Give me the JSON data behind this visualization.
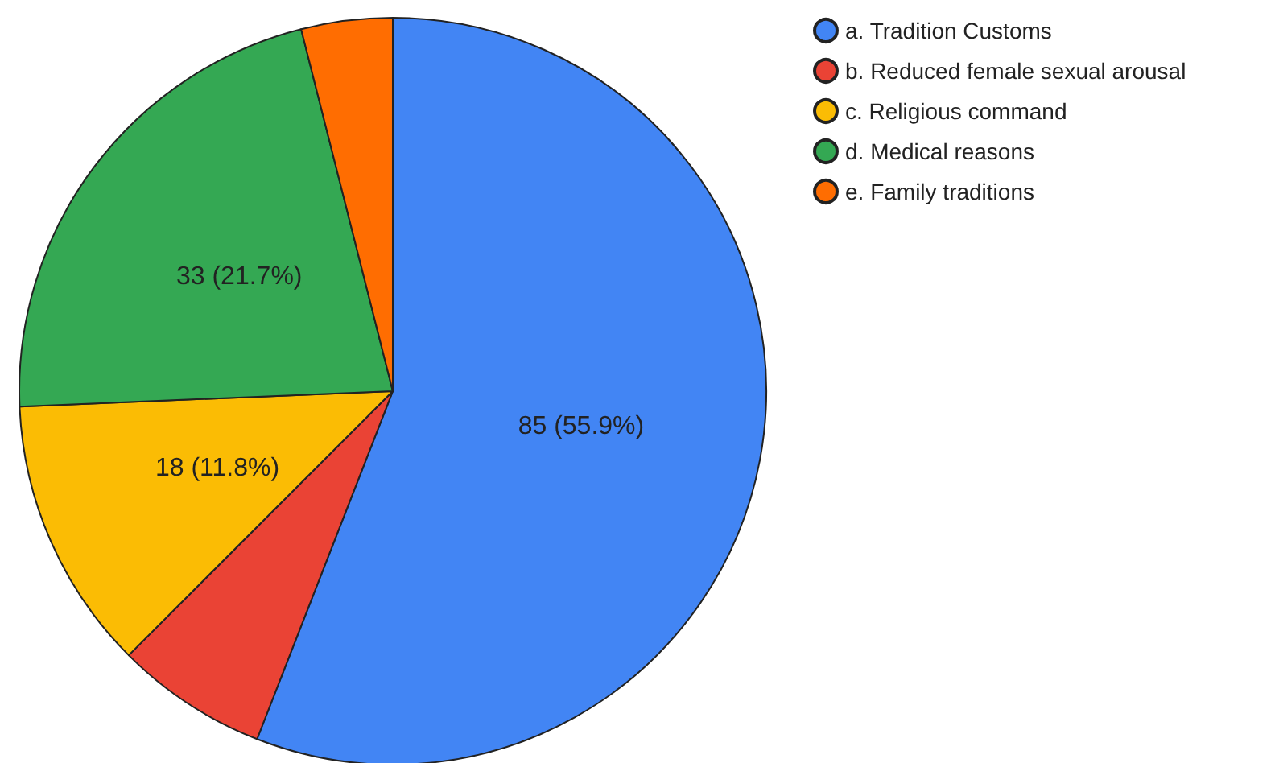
{
  "chart_data": {
    "type": "pie",
    "categories": [
      "a. Tradition Customs",
      "b. Reduced female sexual arousal",
      "c. Religious command",
      "d. Medical reasons",
      "e. Family traditions"
    ],
    "values": [
      85,
      10,
      18,
      33,
      6
    ],
    "colors": [
      "#4285f4",
      "#ea4335",
      "#fbbc04",
      "#34a853",
      "#ff6d01"
    ],
    "value_labels": [
      "85 (55.9%)",
      null,
      "18 (11.8%)",
      "33 (21.7%)",
      null
    ],
    "legend": "top right"
  }
}
